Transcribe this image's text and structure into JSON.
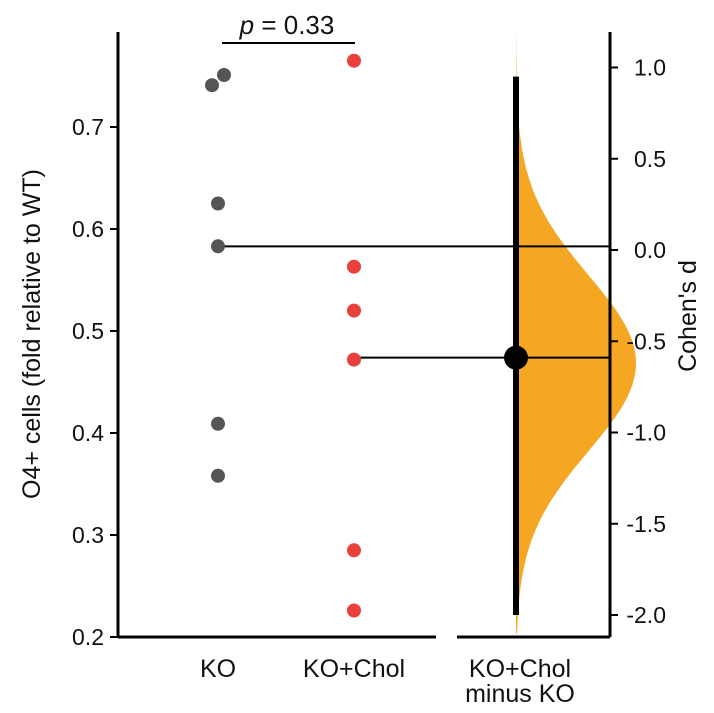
{
  "chart_data": {
    "type": "scatter",
    "subtype": "estimation-plot (Gardner-Altman)",
    "annotation": {
      "p_label": "p",
      "p_equals": " = 0.33"
    },
    "left_axis": {
      "ylabel": "O4+ cells (fold relative to WT)",
      "ylim": [
        0.2,
        0.78
      ],
      "ticks": [
        0.2,
        0.3,
        0.4,
        0.5,
        0.6,
        0.7
      ],
      "tick_labels": [
        "0.2",
        "0.3",
        "0.4",
        "0.5",
        "0.6",
        "0.7"
      ]
    },
    "categories": [
      "KO",
      "KO+Chol"
    ],
    "series": [
      {
        "category": "KO",
        "color": "#555555",
        "values": [
          0.751,
          0.741,
          0.625,
          0.583,
          0.409,
          0.358
        ]
      },
      {
        "category": "KO+Chol",
        "color": "#e8403a",
        "values": [
          0.765,
          0.563,
          0.52,
          0.472,
          0.285,
          0.226
        ]
      }
    ],
    "right_axis": {
      "ylabel": "Cohen's d",
      "ticks": [
        1.0,
        0.5,
        0.0,
        -0.5,
        -1.0,
        -1.5,
        -2.0
      ],
      "tick_labels": [
        "1.0",
        "0.5",
        "0.0",
        "-0.5",
        "-1.0",
        "-1.5",
        "-2.0"
      ],
      "zero_aligns_with": 0.583
    },
    "effect": {
      "category_line1": "KO+Chol",
      "category_line2": "minus KO",
      "point_estimate": -0.59,
      "ci": [
        -2.0,
        0.95
      ],
      "distribution_color": "#f5a623",
      "distribution_range": [
        -2.1,
        1.2
      ],
      "distribution_mean": -0.62,
      "distribution_sd": 0.48
    },
    "grid": false
  }
}
